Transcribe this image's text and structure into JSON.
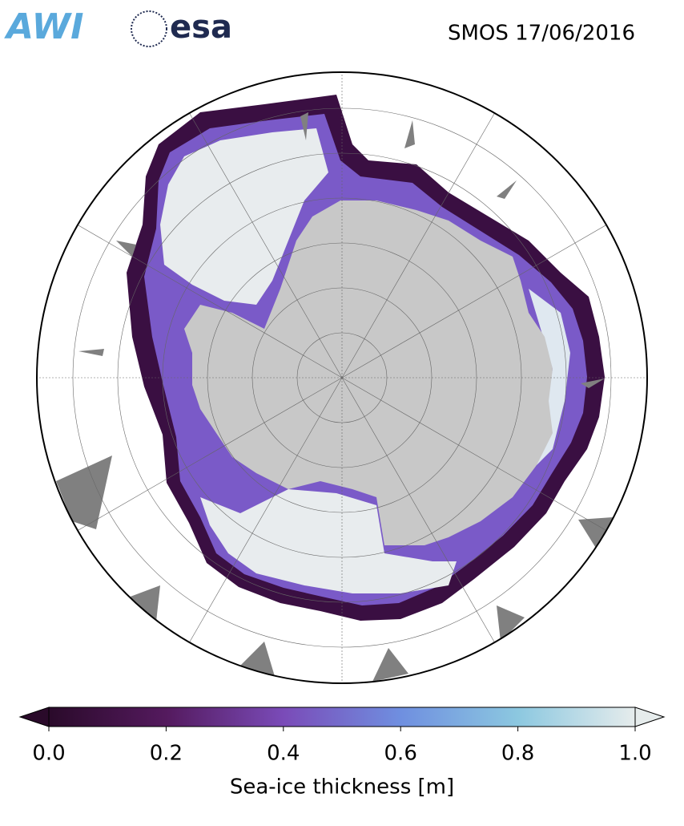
{
  "header": {
    "logos": [
      "AWI",
      "esa"
    ],
    "title": "SMOS 17/06/2016"
  },
  "colorbar": {
    "label": "Sea-ice thickness [m]",
    "range": [
      0,
      1
    ],
    "ticks": [
      {
        "value": 0,
        "label": "0.0"
      },
      {
        "value": 0.2,
        "label": "0.2"
      },
      {
        "value": 0.4,
        "label": "0.4"
      },
      {
        "value": 0.6,
        "label": "0.6"
      },
      {
        "value": 0.8,
        "label": "0.8"
      },
      {
        "value": 1,
        "label": "1.0"
      }
    ],
    "colormap": [
      "#2a0a2a",
      "#541a5e",
      "#7a4bb8",
      "#6f8fe0",
      "#8cc8e0",
      "#e6ecec"
    ]
  }
}
